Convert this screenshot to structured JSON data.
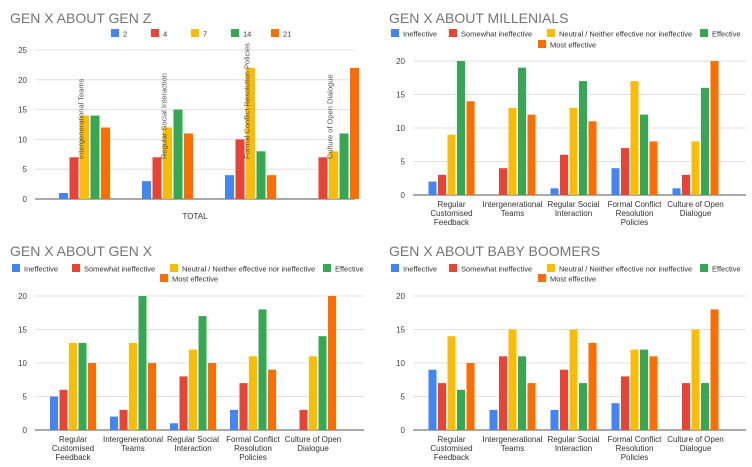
{
  "series_colors": [
    "#4285f4",
    "#ea4335",
    "#fbbc04",
    "#34a853",
    "#ff6d01"
  ],
  "chart_data": [
    {
      "type": "bar",
      "title": "GEN X ABOUT GEN Z",
      "xlabel": "TOTAL",
      "ylim": [
        0,
        25
      ],
      "yticks": [
        0,
        5,
        10,
        15,
        20,
        25
      ],
      "grid": true,
      "legend": "top",
      "categories": [
        "",
        "",
        "",
        ""
      ],
      "bar_labels": [
        "Intergenerational Teams",
        "Regular Social Interaction",
        "Formal Conflict Resolution Policies",
        "Culture of Open Dialogue"
      ],
      "series": [
        {
          "name": "2",
          "values": [
            1,
            3,
            4,
            0
          ]
        },
        {
          "name": "4",
          "values": [
            7,
            7,
            10,
            7
          ]
        },
        {
          "name": "7",
          "values": [
            14,
            12,
            22,
            8
          ]
        },
        {
          "name": "14",
          "values": [
            14,
            15,
            8,
            11
          ]
        },
        {
          "name": "21",
          "values": [
            12,
            11,
            4,
            22
          ]
        }
      ]
    },
    {
      "type": "bar",
      "title": "GEN X ABOUT MILLENIALS",
      "ylim": [
        0,
        20
      ],
      "yticks": [
        0,
        5,
        10,
        15,
        20
      ],
      "grid": true,
      "legend": "top",
      "categories": [
        "Regular Customised Feedback",
        "Intergenerational Teams",
        "Regular Social Interaction",
        "Formal Conflict Resolution Policies",
        "Culture of Open Dialogue"
      ],
      "series": [
        {
          "name": "Ineffective",
          "values": [
            2,
            0,
            1,
            4,
            1
          ]
        },
        {
          "name": "Somewhat ineffective",
          "values": [
            3,
            4,
            6,
            7,
            3
          ]
        },
        {
          "name": "Neutral / Neither effective nor ineffective",
          "values": [
            9,
            13,
            13,
            17,
            8
          ]
        },
        {
          "name": "Effective",
          "values": [
            20,
            19,
            17,
            12,
            16
          ]
        },
        {
          "name": "Most effective",
          "values": [
            14,
            12,
            11,
            8,
            20
          ]
        }
      ]
    },
    {
      "type": "bar",
      "title": "GEN X ABOUT GEN X",
      "ylim": [
        0,
        20
      ],
      "yticks": [
        0,
        5,
        10,
        15,
        20
      ],
      "grid": true,
      "legend": "top",
      "categories": [
        "Regular Customised Feedback",
        "Intergenerational Teams",
        "Regular Social Interaction",
        "Formal Conflict Resolution Policies",
        "Culture of Open Dialogue"
      ],
      "series": [
        {
          "name": "Ineffective",
          "values": [
            5,
            2,
            1,
            3,
            0
          ]
        },
        {
          "name": "Somewhat ineffective",
          "values": [
            6,
            3,
            8,
            7,
            3
          ]
        },
        {
          "name": "Neutral / Neither effective nor ineffective",
          "values": [
            13,
            13,
            12,
            11,
            11
          ]
        },
        {
          "name": "Effective",
          "values": [
            13,
            20,
            17,
            18,
            14
          ]
        },
        {
          "name": "Most effective",
          "values": [
            10,
            10,
            10,
            9,
            20
          ]
        }
      ]
    },
    {
      "type": "bar",
      "title": "GEN X ABOUT BABY BOOMERS",
      "ylim": [
        0,
        20
      ],
      "yticks": [
        0,
        5,
        10,
        15,
        20
      ],
      "grid": true,
      "legend": "top",
      "categories": [
        "Regular Customised Feedback",
        "Intergenerational Teams",
        "Regular Social Interaction",
        "Formal Conflict Resolution Policies",
        "Culture of Open Dialogue"
      ],
      "series": [
        {
          "name": "Ineffective",
          "values": [
            9,
            3,
            3,
            4,
            0
          ]
        },
        {
          "name": "Somewhat ineffective",
          "values": [
            7,
            11,
            9,
            8,
            7
          ]
        },
        {
          "name": "Neutral / Neither effective nor ineffective",
          "values": [
            14,
            15,
            15,
            12,
            15
          ]
        },
        {
          "name": "Effective",
          "values": [
            6,
            11,
            7,
            12,
            7
          ]
        },
        {
          "name": "Most effective",
          "values": [
            10,
            7,
            13,
            11,
            18
          ]
        }
      ]
    }
  ]
}
